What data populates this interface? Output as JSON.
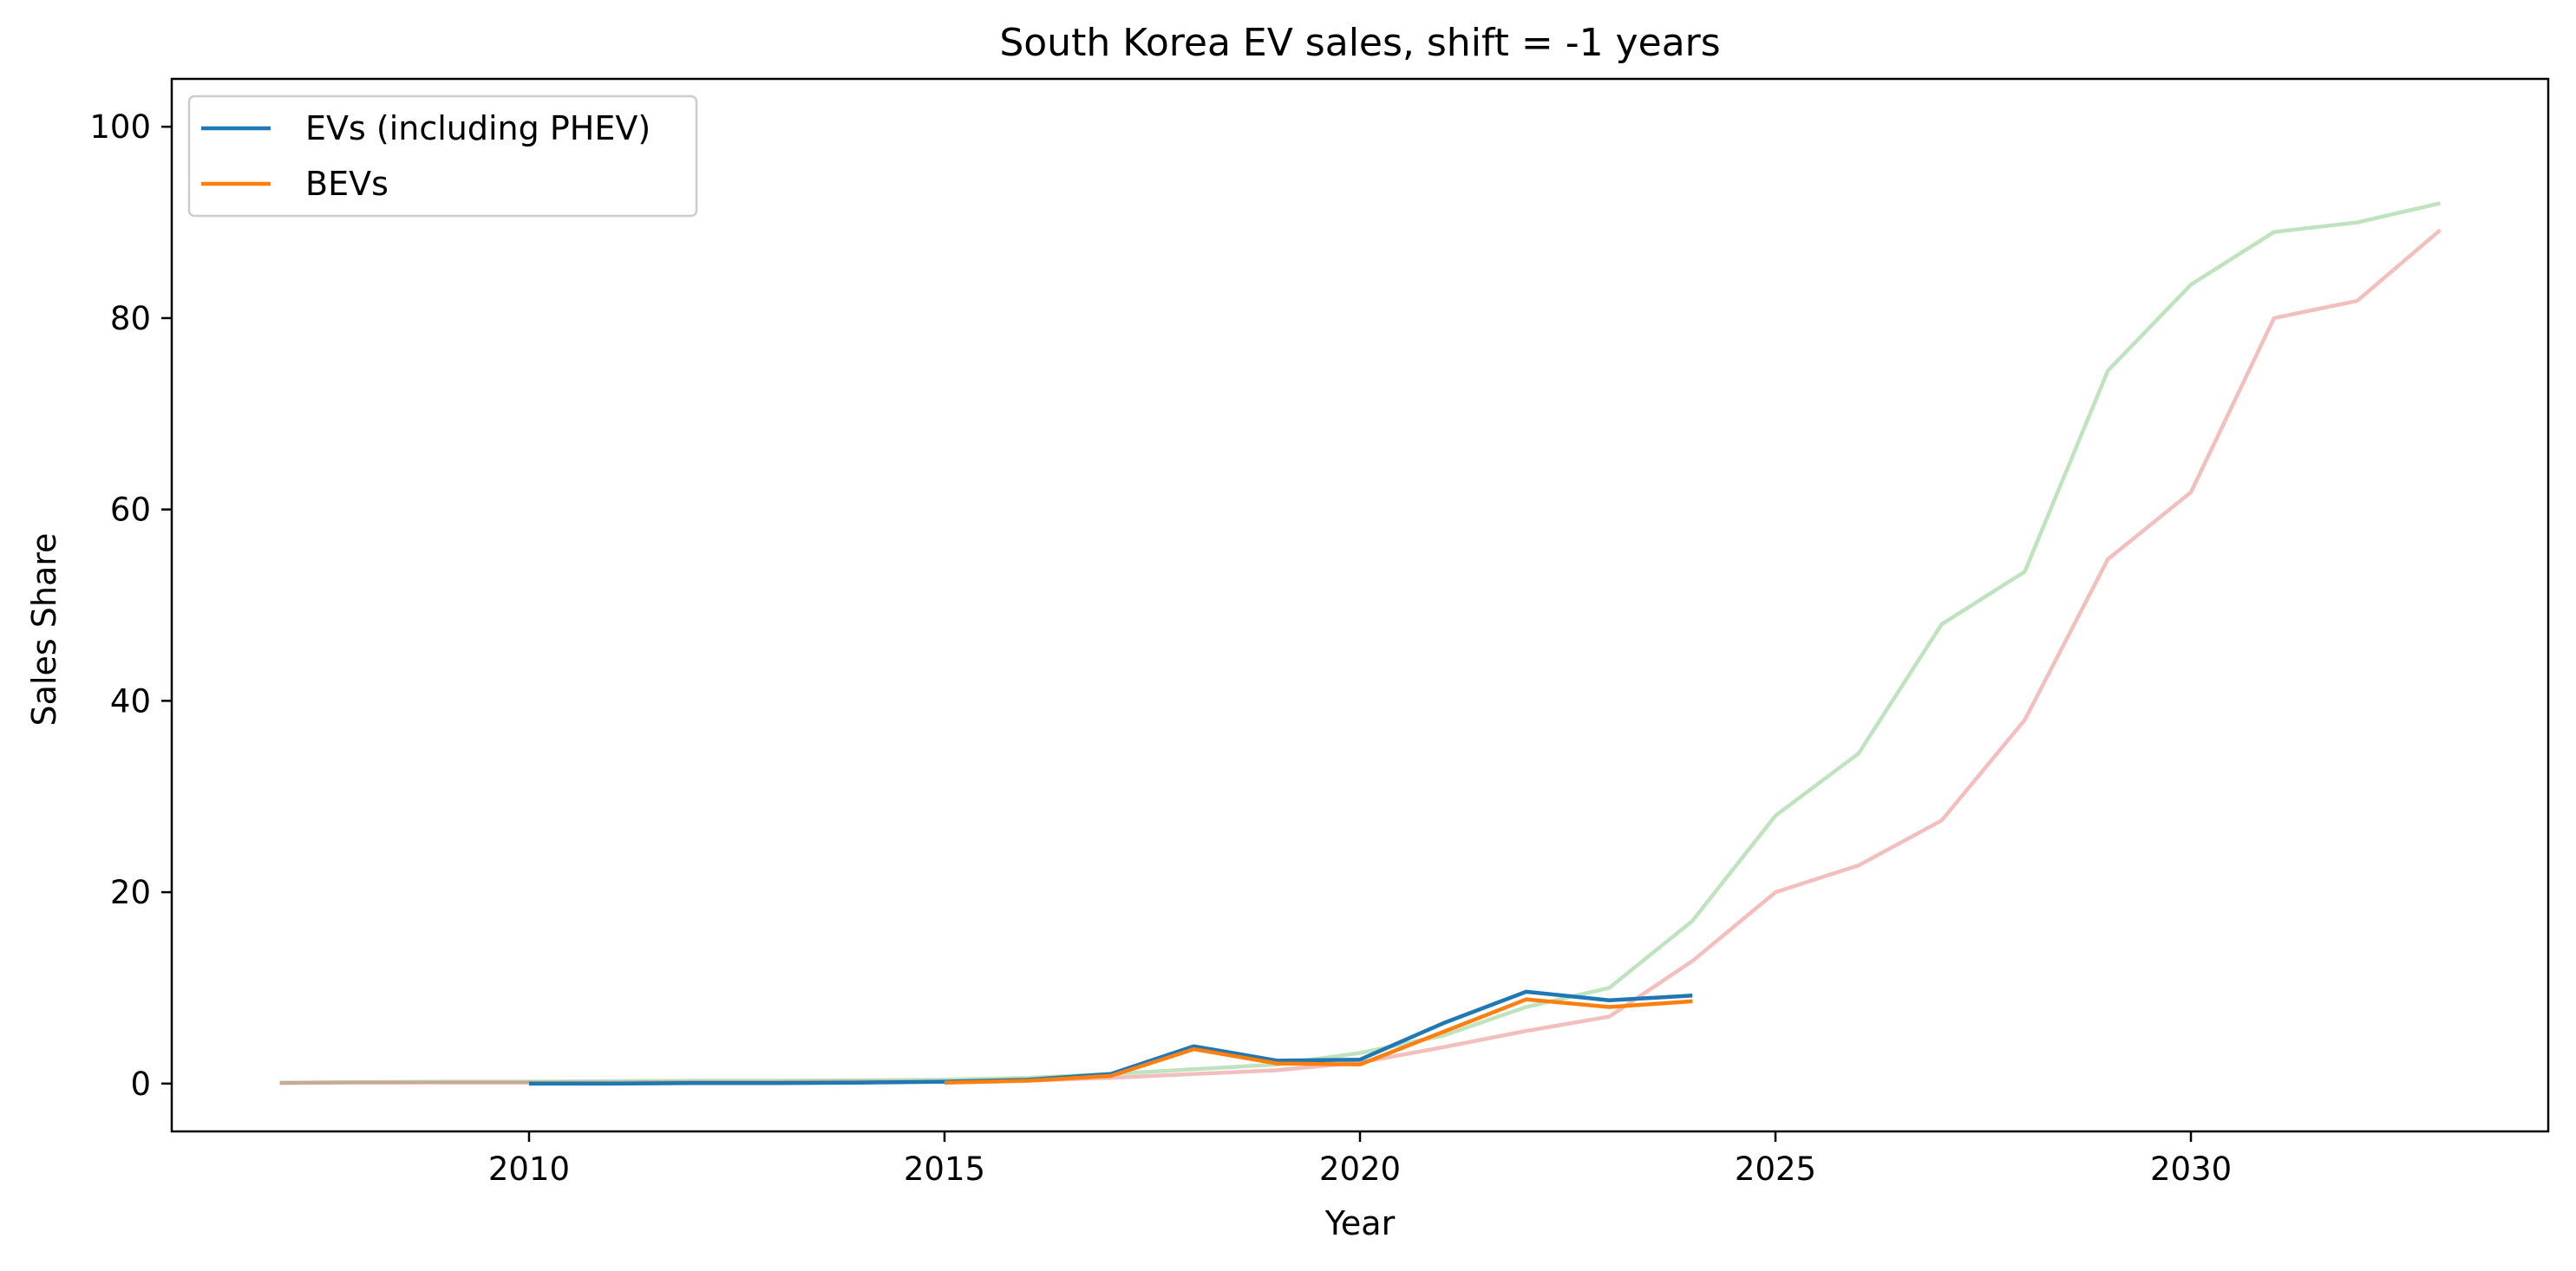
{
  "chart_data": {
    "type": "line",
    "title": "South Korea EV sales, shift = -1 years",
    "xlabel": "Year",
    "ylabel": "Sales Share",
    "xlim": [
      2005.7,
      2034.3
    ],
    "ylim": [
      -5,
      105
    ],
    "xticks": [
      2010,
      2015,
      2020,
      2025,
      2030
    ],
    "yticks": [
      0,
      20,
      40,
      60,
      80,
      100
    ],
    "grid": false,
    "legend_position": "top-left",
    "series": [
      {
        "name": "EVs (including PHEV)",
        "color": "#1f77b4",
        "opacity": 1,
        "in_legend": true,
        "x": [
          2010,
          2011,
          2012,
          2013,
          2014,
          2015,
          2016,
          2017,
          2018,
          2019,
          2020,
          2021,
          2022,
          2023,
          2024
        ],
        "y": [
          0.0,
          0.0,
          0.05,
          0.05,
          0.1,
          0.2,
          0.4,
          1.0,
          3.9,
          2.4,
          2.5,
          6.3,
          9.6,
          8.7,
          9.2
        ]
      },
      {
        "name": "BEVs",
        "color": "#ff7f0e",
        "opacity": 1,
        "in_legend": true,
        "x": [
          2015,
          2016,
          2017,
          2018,
          2019,
          2020,
          2021,
          2022,
          2023,
          2024
        ],
        "y": [
          0.1,
          0.3,
          0.8,
          3.6,
          2.1,
          2.0,
          5.4,
          8.8,
          8.0,
          8.6
        ]
      },
      {
        "name": "",
        "color": "#2ca02c",
        "opacity": 0.3,
        "in_legend": false,
        "x": [
          2007,
          2008,
          2009,
          2010,
          2011,
          2012,
          2013,
          2014,
          2015,
          2016,
          2017,
          2018,
          2019,
          2020,
          2021,
          2022,
          2023,
          2024,
          2025,
          2026,
          2027,
          2028,
          2029,
          2030,
          2031,
          2032,
          2033
        ],
        "y": [
          0.1,
          0.15,
          0.2,
          0.2,
          0.25,
          0.3,
          0.3,
          0.35,
          0.4,
          0.6,
          1.0,
          1.5,
          2.0,
          3.2,
          5.0,
          8.0,
          10.0,
          17.0,
          28.0,
          34.5,
          48.0,
          53.5,
          74.5,
          83.5,
          89.0,
          90.0,
          92.0
        ]
      },
      {
        "name": "",
        "color": "#d62728",
        "opacity": 0.3,
        "in_legend": false,
        "x": [
          2007,
          2008,
          2009,
          2010,
          2011,
          2012,
          2013,
          2014,
          2015,
          2016,
          2017,
          2018,
          2019,
          2020,
          2021,
          2022,
          2023,
          2024,
          2025,
          2026,
          2027,
          2028,
          2029,
          2030,
          2031,
          2032,
          2033
        ],
        "y": [
          0.05,
          0.1,
          0.1,
          0.1,
          0.1,
          0.15,
          0.15,
          0.2,
          0.2,
          0.3,
          0.6,
          1.0,
          1.4,
          2.2,
          3.8,
          5.5,
          7.0,
          12.8,
          20.0,
          22.8,
          27.5,
          38.0,
          54.8,
          61.8,
          80.0,
          81.8,
          89.2
        ]
      }
    ]
  }
}
